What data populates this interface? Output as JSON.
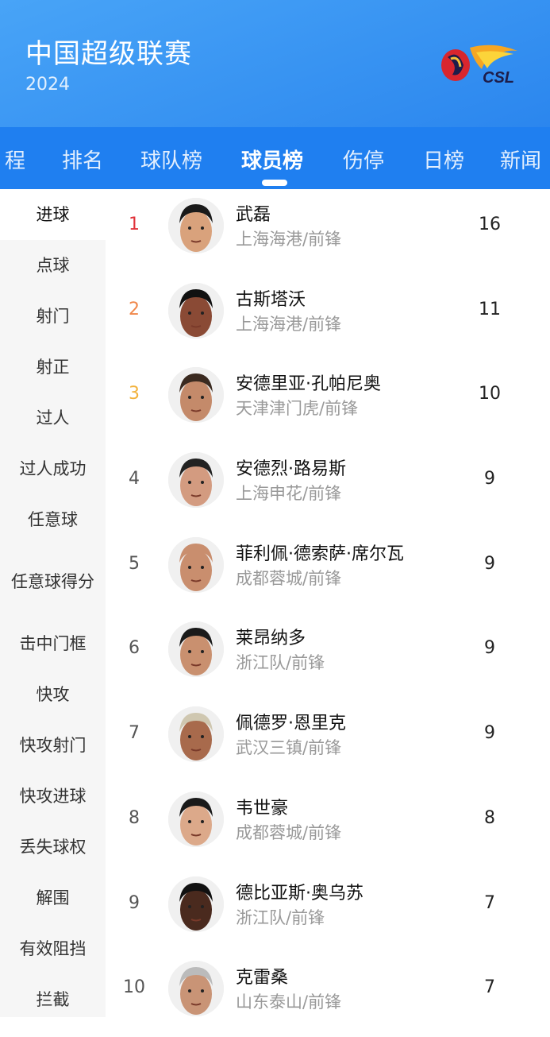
{
  "header": {
    "title": "中国超级联赛",
    "year": "2024",
    "logo_text": "CSL"
  },
  "tabs": [
    {
      "label": "程"
    },
    {
      "label": "排名"
    },
    {
      "label": "球队榜"
    },
    {
      "label": "球员榜",
      "active": true
    },
    {
      "label": "伤停"
    },
    {
      "label": "日榜"
    },
    {
      "label": "新闻"
    }
  ],
  "sidebar": {
    "items": [
      {
        "label": "进球",
        "active": true
      },
      {
        "label": "点球"
      },
      {
        "label": "射门"
      },
      {
        "label": "射正"
      },
      {
        "label": "过人"
      },
      {
        "label": "过人成功"
      },
      {
        "label": "任意球"
      },
      {
        "label": "任意球得分"
      },
      {
        "label": "击中门框"
      },
      {
        "label": "快攻"
      },
      {
        "label": "快攻射门"
      },
      {
        "label": "快攻进球"
      },
      {
        "label": "丢失球权"
      },
      {
        "label": "解围"
      },
      {
        "label": "有效阻挡"
      },
      {
        "label": "拦截"
      }
    ]
  },
  "colors": {
    "rank1": "#e0323a",
    "rank2": "#f0874a",
    "rank3": "#f2b23c",
    "accent": "#1f7ff0"
  },
  "players": [
    {
      "rank": "1",
      "name": "武磊",
      "team": "上海海港/前锋",
      "value": "16",
      "skin": "#d9a27c",
      "hair": "#1a1a1a"
    },
    {
      "rank": "2",
      "name": "古斯塔沃",
      "team": "上海海港/前锋",
      "value": "11",
      "skin": "#8a4a35",
      "hair": "#111"
    },
    {
      "rank": "3",
      "name": "安德里亚·孔帕尼奥",
      "team": "天津津门虎/前锋",
      "value": "10",
      "skin": "#c48a6a",
      "hair": "#3a2a20"
    },
    {
      "rank": "4",
      "name": "安德烈·路易斯",
      "team": "上海申花/前锋",
      "value": "9",
      "skin": "#d39b80",
      "hair": "#222"
    },
    {
      "rank": "5",
      "name": "菲利佩·德索萨·席尔瓦",
      "team": "成都蓉城/前锋",
      "value": "9",
      "skin": "#c98e6e",
      "hair": "#c98e6e"
    },
    {
      "rank": "6",
      "name": "莱昂纳多",
      "team": "浙江队/前锋",
      "value": "9",
      "skin": "#c9906f",
      "hair": "#1a1a1a"
    },
    {
      "rank": "7",
      "name": "佩德罗·恩里克",
      "team": "武汉三镇/前锋",
      "value": "9",
      "skin": "#a86a4c",
      "hair": "#cfc7b0"
    },
    {
      "rank": "8",
      "name": "韦世豪",
      "team": "成都蓉城/前锋",
      "value": "8",
      "skin": "#dca98a",
      "hair": "#1a1a1a"
    },
    {
      "rank": "9",
      "name": "德比亚斯·奥乌苏",
      "team": "浙江队/前锋",
      "value": "7",
      "skin": "#4a2a1e",
      "hair": "#111"
    },
    {
      "rank": "10",
      "name": "克雷桑",
      "team": "山东泰山/前锋",
      "value": "7",
      "skin": "#c99476",
      "hair": "#bbb"
    }
  ]
}
